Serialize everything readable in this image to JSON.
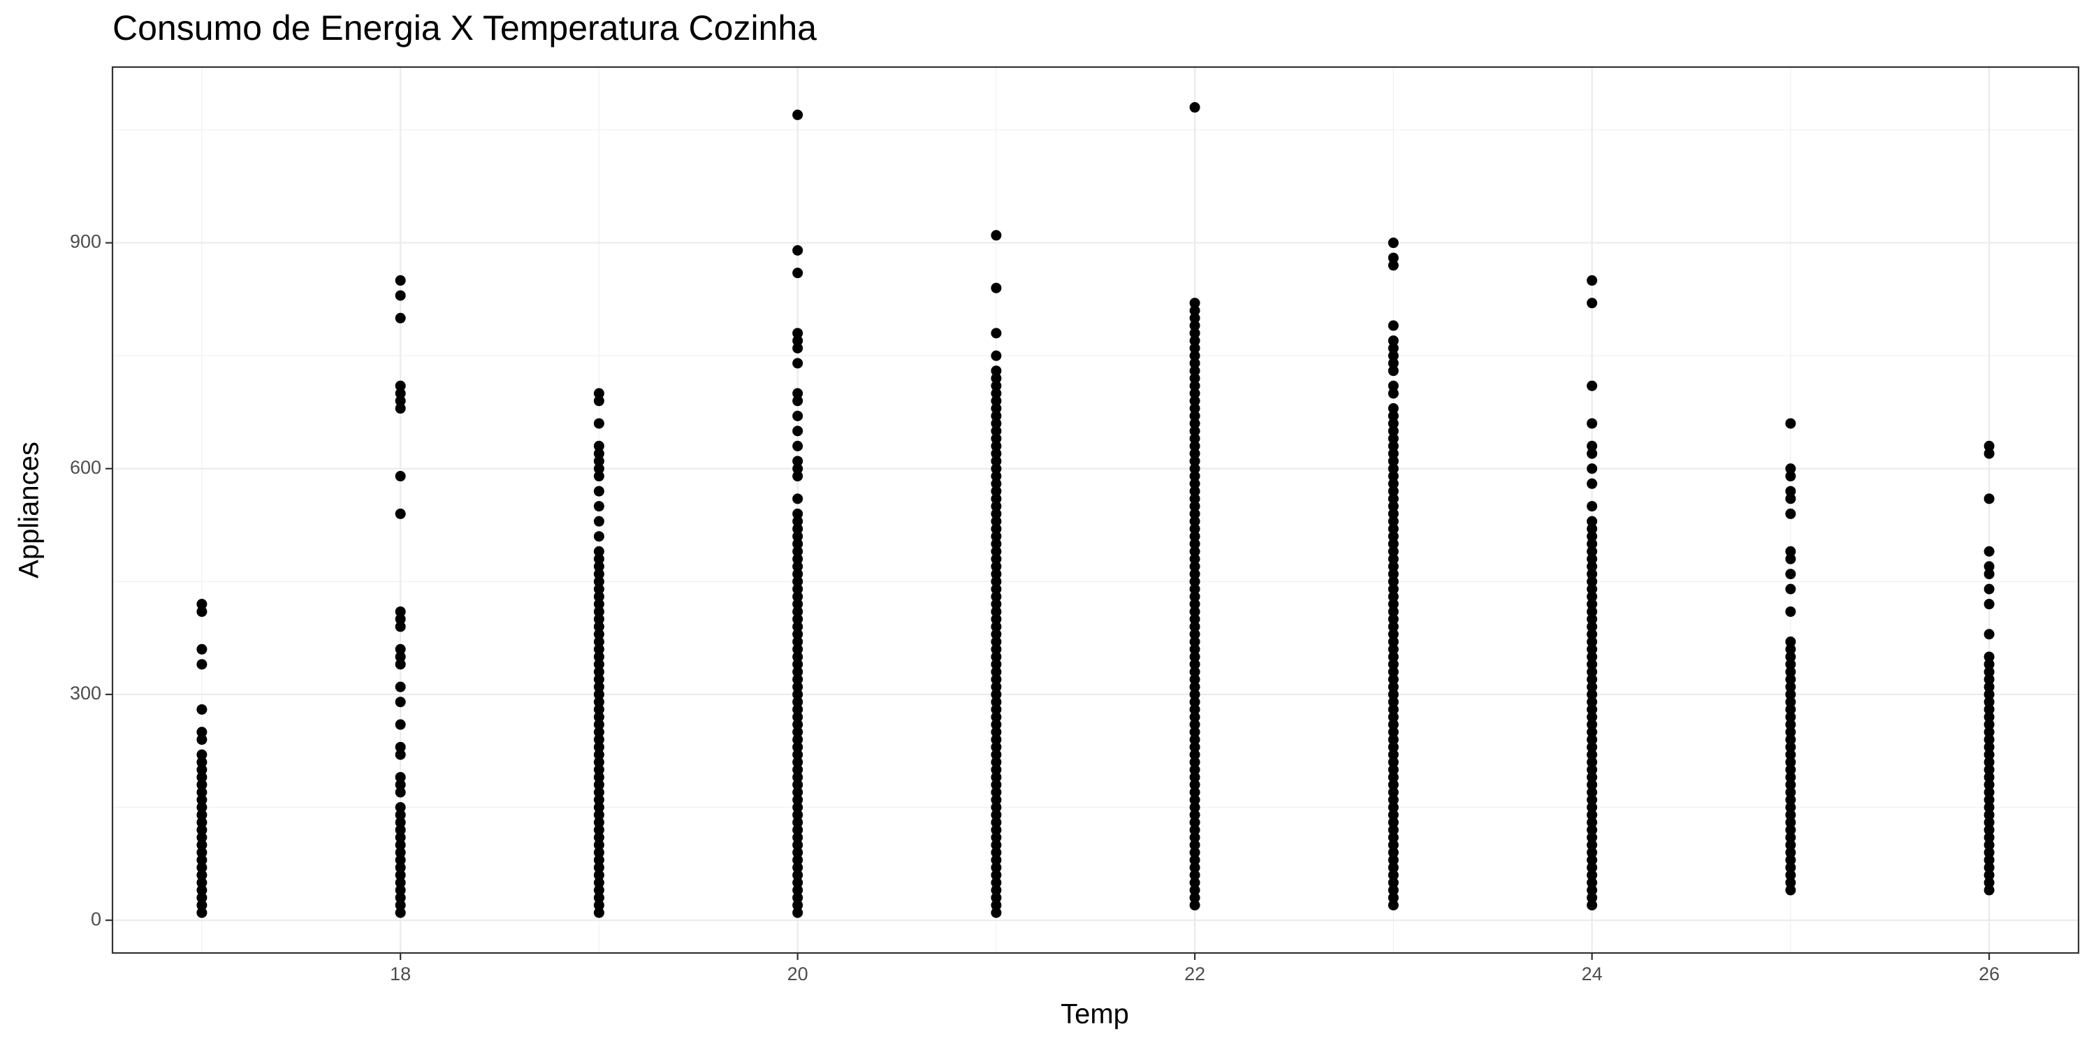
{
  "chart_data": {
    "type": "scatter",
    "title": "Consumo de Energia X Temperatura Cozinha",
    "x_label": "Temp",
    "y_label": "Appliances",
    "xlim": [
      16.55,
      26.45
    ],
    "ylim": [
      -43.5,
      1133.5
    ],
    "xticks": [
      18,
      20,
      22,
      24,
      26
    ],
    "yticks": [
      0,
      300,
      600,
      900
    ],
    "grid": true,
    "minor_grid": true,
    "color": "#000000",
    "series": [
      {
        "x": [
          17,
          17,
          17,
          17,
          17,
          17,
          17,
          17,
          17,
          17,
          17,
          17,
          17,
          17,
          17,
          17,
          17,
          17,
          17,
          17,
          17,
          17,
          17,
          17,
          17,
          17,
          17,
          17,
          17
        ],
        "values": [
          10,
          20,
          30,
          40,
          50,
          60,
          70,
          80,
          90,
          100,
          110,
          120,
          130,
          140,
          150,
          160,
          170,
          180,
          190,
          200,
          210,
          220,
          240,
          250,
          280,
          340,
          360,
          410,
          420
        ]
      },
      {
        "x": [
          18,
          18,
          18,
          18,
          18,
          18,
          18,
          18,
          18,
          18,
          18,
          18,
          18,
          18,
          18,
          18,
          18,
          18,
          18,
          18,
          18,
          18,
          18,
          18,
          18,
          18,
          18,
          18,
          18,
          18,
          18,
          18,
          18,
          18,
          18,
          18,
          18,
          18
        ],
        "values": [
          10,
          20,
          30,
          40,
          50,
          60,
          70,
          80,
          90,
          100,
          110,
          120,
          130,
          140,
          150,
          170,
          180,
          190,
          220,
          230,
          260,
          290,
          310,
          340,
          350,
          360,
          390,
          400,
          410,
          540,
          590,
          680,
          690,
          700,
          710,
          800,
          830,
          850
        ]
      },
      {
        "x": [
          19,
          19,
          19,
          19,
          19,
          19,
          19,
          19,
          19,
          19,
          19,
          19,
          19,
          19,
          19,
          19,
          19,
          19,
          19,
          19,
          19,
          19,
          19,
          19,
          19,
          19,
          19,
          19,
          19,
          19,
          19,
          19,
          19,
          19,
          19,
          19,
          19,
          19,
          19,
          19,
          19,
          19,
          19,
          19,
          19,
          19,
          19,
          19,
          19,
          19,
          19,
          19,
          19,
          19,
          19,
          19,
          19,
          19,
          19,
          19,
          19
        ],
        "values": [
          10,
          20,
          30,
          40,
          50,
          60,
          70,
          80,
          90,
          100,
          110,
          120,
          130,
          140,
          150,
          160,
          170,
          180,
          190,
          200,
          210,
          220,
          230,
          240,
          250,
          260,
          270,
          280,
          290,
          300,
          310,
          320,
          330,
          340,
          350,
          360,
          370,
          380,
          390,
          400,
          410,
          420,
          430,
          440,
          450,
          460,
          470,
          480,
          490,
          510,
          530,
          550,
          570,
          590,
          600,
          610,
          620,
          630,
          660,
          690,
          700
        ]
      },
      {
        "x": [
          20,
          20,
          20,
          20,
          20,
          20,
          20,
          20,
          20,
          20,
          20,
          20,
          20,
          20,
          20,
          20,
          20,
          20,
          20,
          20,
          20,
          20,
          20,
          20,
          20,
          20,
          20,
          20,
          20,
          20,
          20,
          20,
          20,
          20,
          20,
          20,
          20,
          20,
          20,
          20,
          20,
          20,
          20,
          20,
          20,
          20,
          20,
          20,
          20,
          20,
          20,
          20,
          20,
          20,
          20,
          20,
          20,
          20,
          20,
          20,
          20,
          20,
          20,
          20,
          20,
          20,
          20,
          20,
          20,
          20
        ],
        "values": [
          10,
          20,
          30,
          40,
          50,
          60,
          70,
          80,
          90,
          100,
          110,
          120,
          130,
          140,
          150,
          160,
          170,
          180,
          190,
          200,
          210,
          220,
          230,
          240,
          250,
          260,
          270,
          280,
          290,
          300,
          310,
          320,
          330,
          340,
          350,
          360,
          370,
          380,
          390,
          400,
          410,
          420,
          430,
          440,
          450,
          460,
          470,
          480,
          490,
          500,
          510,
          520,
          530,
          540,
          560,
          590,
          600,
          610,
          630,
          650,
          670,
          690,
          700,
          740,
          760,
          770,
          780,
          860,
          890,
          1070
        ]
      },
      {
        "x": [
          21,
          21,
          21,
          21,
          21,
          21,
          21,
          21,
          21,
          21,
          21,
          21,
          21,
          21,
          21,
          21,
          21,
          21,
          21,
          21,
          21,
          21,
          21,
          21,
          21,
          21,
          21,
          21,
          21,
          21,
          21,
          21,
          21,
          21,
          21,
          21,
          21,
          21,
          21,
          21,
          21,
          21,
          21,
          21,
          21,
          21,
          21,
          21,
          21,
          21,
          21,
          21,
          21,
          21,
          21,
          21,
          21,
          21,
          21,
          21,
          21,
          21,
          21,
          21,
          21,
          21,
          21,
          21,
          21,
          21,
          21,
          21,
          21,
          21,
          21,
          21,
          21
        ],
        "values": [
          10,
          20,
          30,
          40,
          50,
          60,
          70,
          80,
          90,
          100,
          110,
          120,
          130,
          140,
          150,
          160,
          170,
          180,
          190,
          200,
          210,
          220,
          230,
          240,
          250,
          260,
          270,
          280,
          290,
          300,
          310,
          320,
          330,
          340,
          350,
          360,
          370,
          380,
          390,
          400,
          410,
          420,
          430,
          440,
          450,
          460,
          470,
          480,
          490,
          500,
          510,
          520,
          530,
          540,
          550,
          560,
          570,
          580,
          590,
          600,
          610,
          620,
          630,
          640,
          650,
          660,
          670,
          680,
          690,
          700,
          710,
          720,
          730,
          750,
          780,
          840,
          910
        ]
      },
      {
        "x": [
          22,
          22,
          22,
          22,
          22,
          22,
          22,
          22,
          22,
          22,
          22,
          22,
          22,
          22,
          22,
          22,
          22,
          22,
          22,
          22,
          22,
          22,
          22,
          22,
          22,
          22,
          22,
          22,
          22,
          22,
          22,
          22,
          22,
          22,
          22,
          22,
          22,
          22,
          22,
          22,
          22,
          22,
          22,
          22,
          22,
          22,
          22,
          22,
          22,
          22,
          22,
          22,
          22,
          22,
          22,
          22,
          22,
          22,
          22,
          22,
          22,
          22,
          22,
          22,
          22,
          22,
          22,
          22,
          22,
          22,
          22,
          22,
          22,
          22,
          22,
          22,
          22,
          22,
          22,
          22,
          22,
          22
        ],
        "values": [
          20,
          30,
          40,
          50,
          60,
          70,
          80,
          90,
          100,
          110,
          120,
          130,
          140,
          150,
          160,
          170,
          180,
          190,
          200,
          210,
          220,
          230,
          240,
          250,
          260,
          270,
          280,
          290,
          300,
          310,
          320,
          330,
          340,
          350,
          360,
          370,
          380,
          390,
          400,
          410,
          420,
          430,
          440,
          450,
          460,
          470,
          480,
          490,
          500,
          510,
          520,
          530,
          540,
          550,
          560,
          570,
          580,
          590,
          600,
          610,
          620,
          630,
          640,
          650,
          660,
          670,
          680,
          690,
          700,
          710,
          720,
          730,
          740,
          750,
          760,
          770,
          780,
          790,
          800,
          810,
          820,
          1080
        ]
      },
      {
        "x": [
          23,
          23,
          23,
          23,
          23,
          23,
          23,
          23,
          23,
          23,
          23,
          23,
          23,
          23,
          23,
          23,
          23,
          23,
          23,
          23,
          23,
          23,
          23,
          23,
          23,
          23,
          23,
          23,
          23,
          23,
          23,
          23,
          23,
          23,
          23,
          23,
          23,
          23,
          23,
          23,
          23,
          23,
          23,
          23,
          23,
          23,
          23,
          23,
          23,
          23,
          23,
          23,
          23,
          23,
          23,
          23,
          23,
          23,
          23,
          23,
          23,
          23,
          23,
          23,
          23,
          23,
          23,
          23,
          23,
          23,
          23,
          23,
          23,
          23,
          23,
          23,
          23,
          23
        ],
        "values": [
          20,
          30,
          40,
          50,
          60,
          70,
          80,
          90,
          100,
          110,
          120,
          130,
          140,
          150,
          160,
          170,
          180,
          190,
          200,
          210,
          220,
          230,
          240,
          250,
          260,
          270,
          280,
          290,
          300,
          310,
          320,
          330,
          340,
          350,
          360,
          370,
          380,
          390,
          400,
          410,
          420,
          430,
          440,
          450,
          460,
          470,
          480,
          490,
          500,
          510,
          520,
          530,
          540,
          550,
          560,
          570,
          580,
          590,
          600,
          610,
          620,
          630,
          640,
          650,
          660,
          670,
          680,
          700,
          710,
          730,
          740,
          750,
          760,
          770,
          790,
          870,
          880,
          900
        ]
      },
      {
        "x": [
          24,
          24,
          24,
          24,
          24,
          24,
          24,
          24,
          24,
          24,
          24,
          24,
          24,
          24,
          24,
          24,
          24,
          24,
          24,
          24,
          24,
          24,
          24,
          24,
          24,
          24,
          24,
          24,
          24,
          24,
          24,
          24,
          24,
          24,
          24,
          24,
          24,
          24,
          24,
          24,
          24,
          24,
          24,
          24,
          24,
          24,
          24,
          24,
          24,
          24,
          24,
          24,
          24,
          24,
          24,
          24,
          24,
          24,
          24,
          24,
          24
        ],
        "values": [
          20,
          30,
          40,
          50,
          60,
          70,
          80,
          90,
          100,
          110,
          120,
          130,
          140,
          150,
          160,
          170,
          180,
          190,
          200,
          210,
          220,
          230,
          240,
          250,
          260,
          270,
          280,
          290,
          300,
          310,
          320,
          330,
          340,
          350,
          360,
          370,
          380,
          390,
          400,
          410,
          420,
          430,
          440,
          450,
          460,
          470,
          480,
          490,
          500,
          510,
          520,
          530,
          550,
          580,
          600,
          620,
          630,
          660,
          710,
          820,
          850
        ]
      },
      {
        "x": [
          25,
          25,
          25,
          25,
          25,
          25,
          25,
          25,
          25,
          25,
          25,
          25,
          25,
          25,
          25,
          25,
          25,
          25,
          25,
          25,
          25,
          25,
          25,
          25,
          25,
          25,
          25,
          25,
          25,
          25,
          25,
          25,
          25,
          25,
          25,
          25,
          25,
          25,
          25,
          25,
          25,
          25,
          25,
          25,
          25
        ],
        "values": [
          40,
          50,
          60,
          70,
          80,
          90,
          100,
          110,
          120,
          130,
          140,
          150,
          160,
          170,
          180,
          190,
          200,
          210,
          220,
          230,
          240,
          250,
          260,
          270,
          280,
          290,
          300,
          310,
          320,
          330,
          340,
          350,
          360,
          370,
          410,
          440,
          460,
          480,
          490,
          540,
          560,
          570,
          590,
          600,
          660
        ]
      },
      {
        "x": [
          26,
          26,
          26,
          26,
          26,
          26,
          26,
          26,
          26,
          26,
          26,
          26,
          26,
          26,
          26,
          26,
          26,
          26,
          26,
          26,
          26,
          26,
          26,
          26,
          26,
          26,
          26,
          26,
          26,
          26,
          26,
          26,
          26,
          26,
          26,
          26,
          26,
          26,
          26,
          26,
          26
        ],
        "values": [
          40,
          50,
          60,
          70,
          80,
          90,
          100,
          110,
          120,
          130,
          140,
          150,
          160,
          170,
          180,
          190,
          200,
          210,
          220,
          230,
          240,
          250,
          260,
          270,
          280,
          290,
          300,
          310,
          320,
          330,
          340,
          350,
          380,
          420,
          440,
          460,
          470,
          490,
          560,
          620,
          630
        ]
      }
    ]
  }
}
